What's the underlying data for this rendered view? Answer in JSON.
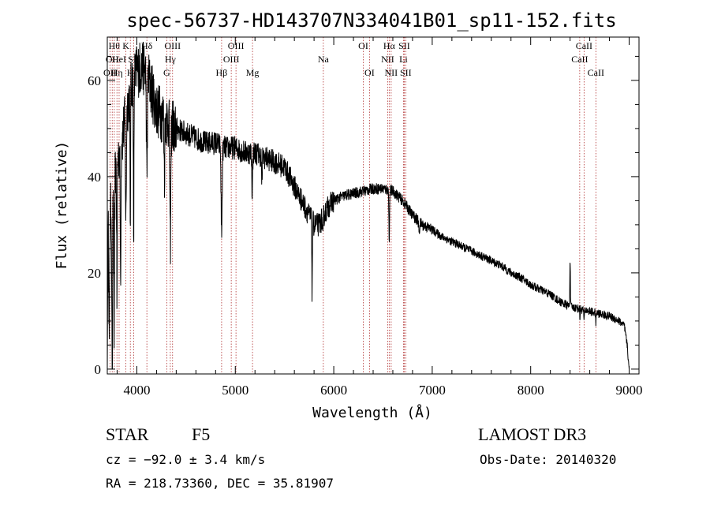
{
  "chart_data": {
    "type": "line",
    "title": "spec-56737-HD143707N334041B01_sp11-152.fits",
    "xlabel": "Wavelength (Å)",
    "ylabel": "Flux (relative)",
    "xlim": [
      3700,
      9100
    ],
    "ylim": [
      -1,
      69
    ],
    "xticks": [
      4000,
      5000,
      6000,
      7000,
      8000,
      9000
    ],
    "yticks": [
      0,
      20,
      40,
      60
    ],
    "xticklabels": [
      "4000",
      "5000",
      "6000",
      "7000",
      "8000",
      "9000"
    ],
    "yticklabels": [
      "0",
      "20",
      "40",
      "60"
    ],
    "series": [
      {
        "name": "flux",
        "continuum": [
          [
            3700,
            0
          ],
          [
            3703,
            15
          ],
          [
            3710,
            28
          ],
          [
            3740,
            34
          ],
          [
            3790,
            42
          ],
          [
            3850,
            48
          ],
          [
            3900,
            54
          ],
          [
            3950,
            60
          ],
          [
            4000,
            62
          ],
          [
            4050,
            63
          ],
          [
            4100,
            62
          ],
          [
            4150,
            58
          ],
          [
            4200,
            54
          ],
          [
            4300,
            52
          ],
          [
            4400,
            50
          ],
          [
            4500,
            49
          ],
          [
            4600,
            48
          ],
          [
            4700,
            47
          ],
          [
            4800,
            47
          ],
          [
            4900,
            46
          ],
          [
            5000,
            46
          ],
          [
            5100,
            45
          ],
          [
            5200,
            45
          ],
          [
            5300,
            44
          ],
          [
            5400,
            43
          ],
          [
            5500,
            42
          ],
          [
            5600,
            38
          ],
          [
            5700,
            34
          ],
          [
            5750,
            32
          ],
          [
            5800,
            30
          ],
          [
            5850,
            30
          ],
          [
            5900,
            32
          ],
          [
            5950,
            34
          ],
          [
            6000,
            35
          ],
          [
            6100,
            36
          ],
          [
            6200,
            36.5
          ],
          [
            6300,
            37
          ],
          [
            6400,
            37.5
          ],
          [
            6500,
            37.5
          ],
          [
            6600,
            37
          ],
          [
            6700,
            35
          ],
          [
            6800,
            32
          ],
          [
            6900,
            30
          ],
          [
            7000,
            29
          ],
          [
            7100,
            27.5
          ],
          [
            7200,
            26.5
          ],
          [
            7300,
            25.5
          ],
          [
            7400,
            24.5
          ],
          [
            7500,
            23.5
          ],
          [
            7600,
            22.5
          ],
          [
            7700,
            21.5
          ],
          [
            7800,
            20
          ],
          [
            7900,
            19
          ],
          [
            8000,
            17.5
          ],
          [
            8100,
            16.5
          ],
          [
            8200,
            15.5
          ],
          [
            8300,
            14
          ],
          [
            8400,
            13
          ],
          [
            8500,
            12.5
          ],
          [
            8600,
            12
          ],
          [
            8700,
            11.5
          ],
          [
            8800,
            11
          ],
          [
            8900,
            10
          ],
          [
            8950,
            9
          ],
          [
            8980,
            5
          ],
          [
            9000,
            0
          ]
        ],
        "features": [
          [
            3720,
            25,
            5
          ],
          [
            3750,
            44,
            5
          ],
          [
            3770,
            33,
            5
          ],
          [
            3798,
            28,
            4
          ],
          [
            3835,
            27,
            5
          ],
          [
            3889,
            22,
            6
          ],
          [
            3933,
            30,
            4
          ],
          [
            3968,
            30,
            5
          ],
          [
            4102,
            22,
            7
          ],
          [
            4280,
            12,
            5
          ],
          [
            4340,
            26,
            7
          ],
          [
            4383,
            6,
            4
          ],
          [
            4861,
            18,
            8
          ],
          [
            5172,
            8,
            6
          ],
          [
            5270,
            6,
            5
          ],
          [
            5780,
            15,
            4
          ],
          [
            5890,
            5,
            5
          ],
          [
            6563,
            10,
            5
          ],
          [
            6867,
            2,
            8
          ],
          [
            8400,
            -10,
            4
          ],
          [
            8500,
            2,
            3
          ],
          [
            8542,
            3,
            3
          ],
          [
            8662,
            3,
            3
          ]
        ],
        "noise_amplitude": {
          "below_4400": 6,
          "below_6000": 2.5,
          "below_7000": 1.2,
          "above_7000": 0.9
        },
        "samples": 2600
      }
    ],
    "spectral_lines": [
      {
        "wavelength": 3727,
        "label": "OII",
        "row": 2
      },
      {
        "wavelength": 3750,
        "label": "OII",
        "row": 1
      },
      {
        "wavelength": 3771,
        "label": "Hθ",
        "row": 0
      },
      {
        "wavelength": 3798,
        "label": "Hη",
        "row": 2
      },
      {
        "wavelength": 3820,
        "label": "HeI",
        "row": 1
      },
      {
        "wavelength": 3889,
        "label": "K",
        "row": 0
      },
      {
        "wavelength": 3934,
        "label": "H",
        "row": 2
      },
      {
        "wavelength": 3969,
        "label": "SII",
        "row": 1
      },
      {
        "wavelength": 4102,
        "label": "Hδ",
        "row": 0
      },
      {
        "wavelength": 4304,
        "label": "G",
        "row": 2
      },
      {
        "wavelength": 4340,
        "label": "Hγ",
        "row": 1
      },
      {
        "wavelength": 4363,
        "label": "OIII",
        "row": 0
      },
      {
        "wavelength": 4861,
        "label": "Hβ",
        "row": 2
      },
      {
        "wavelength": 4959,
        "label": "OIII",
        "row": 1
      },
      {
        "wavelength": 5007,
        "label": "OIII",
        "row": 0
      },
      {
        "wavelength": 5175,
        "label": "Mg",
        "row": 2
      },
      {
        "wavelength": 5894,
        "label": "Na",
        "row": 1
      },
      {
        "wavelength": 6300,
        "label": "OI",
        "row": 0
      },
      {
        "wavelength": 6363,
        "label": "OI",
        "row": 2
      },
      {
        "wavelength": 6548,
        "label": "NII",
        "row": 1
      },
      {
        "wavelength": 6563,
        "label": "Hα",
        "row": 0
      },
      {
        "wavelength": 6583,
        "label": "NII",
        "row": 2
      },
      {
        "wavelength": 6708,
        "label": "Li",
        "row": 1
      },
      {
        "wavelength": 6716,
        "label": "SII",
        "row": 0
      },
      {
        "wavelength": 6731,
        "label": "SII",
        "row": 2
      },
      {
        "wavelength": 8498,
        "label": "CaII",
        "row": 1
      },
      {
        "wavelength": 8542,
        "label": "CaII",
        "row": 0
      },
      {
        "wavelength": 8662,
        "label": "CaII",
        "row": 2
      }
    ]
  },
  "info": {
    "object_class": "STAR",
    "subclass": "F5",
    "survey": "LAMOST DR3",
    "cz": "cz = −92.0 ± 3.4 km/s",
    "obs_date": "Obs-Date: 20140320",
    "coords": "RA = 218.73360, DEC =  35.81907"
  },
  "colors": {
    "line": "#000000",
    "marker": "#b03030",
    "background": "#ffffff"
  }
}
